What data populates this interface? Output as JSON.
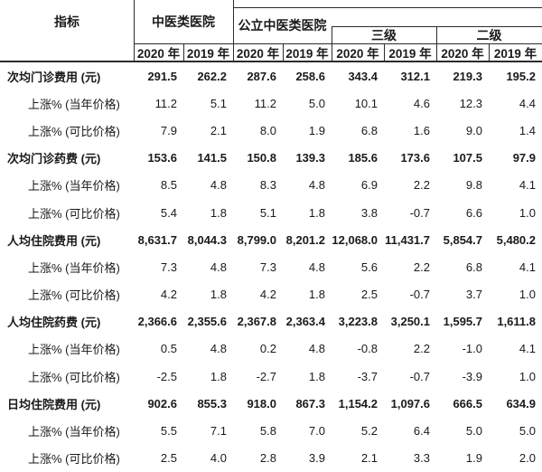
{
  "colors": {
    "text": "#1a1a1a",
    "line": "#2b2b2b",
    "background": "#ffffff"
  },
  "table": {
    "header": {
      "indicator": "指标",
      "group_tcm": "中医类医院",
      "group_public": "公立中医类医院",
      "group_level3": "三级",
      "group_level2": "二级",
      "year_2020": "2020 年",
      "year_2019": "2019 年"
    },
    "rows": [
      {
        "label": "次均门诊费用 (元)",
        "bold": true,
        "indent": false,
        "values": [
          "291.5",
          "262.2",
          "287.6",
          "258.6",
          "343.4",
          "312.1",
          "219.3",
          "195.2"
        ]
      },
      {
        "label": "上涨% (当年价格)",
        "bold": false,
        "indent": true,
        "values": [
          "11.2",
          "5.1",
          "11.2",
          "5.0",
          "10.1",
          "4.6",
          "12.3",
          "4.4"
        ]
      },
      {
        "label": "上涨% (可比价格)",
        "bold": false,
        "indent": true,
        "values": [
          "7.9",
          "2.1",
          "8.0",
          "1.9",
          "6.8",
          "1.6",
          "9.0",
          "1.4"
        ]
      },
      {
        "label": "次均门诊药费 (元)",
        "bold": true,
        "indent": false,
        "values": [
          "153.6",
          "141.5",
          "150.8",
          "139.3",
          "185.6",
          "173.6",
          "107.5",
          "97.9"
        ]
      },
      {
        "label": "上涨% (当年价格)",
        "bold": false,
        "indent": true,
        "values": [
          "8.5",
          "4.8",
          "8.3",
          "4.8",
          "6.9",
          "2.2",
          "9.8",
          "4.1"
        ]
      },
      {
        "label": "上涨% (可比价格)",
        "bold": false,
        "indent": true,
        "values": [
          "5.4",
          "1.8",
          "5.1",
          "1.8",
          "3.8",
          "-0.7",
          "6.6",
          "1.0"
        ]
      },
      {
        "label": "人均住院费用 (元)",
        "bold": true,
        "indent": false,
        "values": [
          "8,631.7",
          "8,044.3",
          "8,799.0",
          "8,201.2",
          "12,068.0",
          "11,431.7",
          "5,854.7",
          "5,480.2"
        ]
      },
      {
        "label": "上涨% (当年价格)",
        "bold": false,
        "indent": true,
        "values": [
          "7.3",
          "4.8",
          "7.3",
          "4.8",
          "5.6",
          "2.2",
          "6.8",
          "4.1"
        ]
      },
      {
        "label": "上涨% (可比价格)",
        "bold": false,
        "indent": true,
        "values": [
          "4.2",
          "1.8",
          "4.2",
          "1.8",
          "2.5",
          "-0.7",
          "3.7",
          "1.0"
        ]
      },
      {
        "label": "人均住院药费 (元)",
        "bold": true,
        "indent": false,
        "values": [
          "2,366.6",
          "2,355.6",
          "2,367.8",
          "2,363.4",
          "3,223.8",
          "3,250.1",
          "1,595.7",
          "1,611.8"
        ]
      },
      {
        "label": "上涨% (当年价格)",
        "bold": false,
        "indent": true,
        "values": [
          "0.5",
          "4.8",
          "0.2",
          "4.8",
          "-0.8",
          "2.2",
          "-1.0",
          "4.1"
        ]
      },
      {
        "label": "上涨% (可比价格)",
        "bold": false,
        "indent": true,
        "values": [
          "-2.5",
          "1.8",
          "-2.7",
          "1.8",
          "-3.7",
          "-0.7",
          "-3.9",
          "1.0"
        ]
      },
      {
        "label": "日均住院费用 (元)",
        "bold": true,
        "indent": false,
        "values": [
          "902.6",
          "855.3",
          "918.0",
          "867.3",
          "1,154.2",
          "1,097.6",
          "666.5",
          "634.9"
        ]
      },
      {
        "label": "上涨% (当年价格)",
        "bold": false,
        "indent": true,
        "values": [
          "5.5",
          "7.1",
          "5.8",
          "7.0",
          "5.2",
          "6.4",
          "5.0",
          "5.0"
        ]
      },
      {
        "label": "上涨% (可比价格)",
        "bold": false,
        "indent": true,
        "values": [
          "2.5",
          "4.0",
          "2.8",
          "3.9",
          "2.1",
          "3.3",
          "1.9",
          "2.0"
        ]
      }
    ]
  }
}
